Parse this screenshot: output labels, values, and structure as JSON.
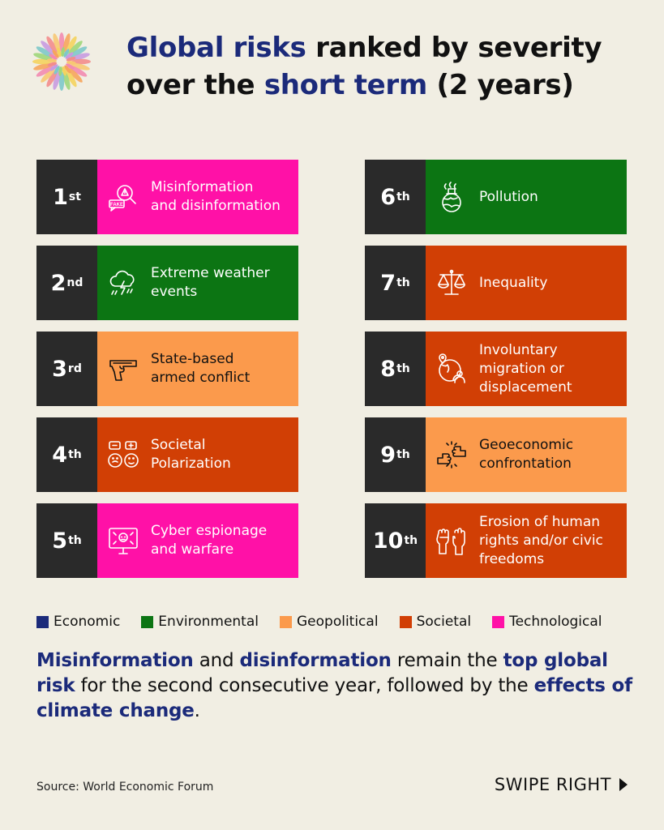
{
  "title": {
    "part1": "Global risks",
    "part2": " ranked by severity",
    "part3": "over the ",
    "part4": "short term",
    "part5": " (2 years)"
  },
  "risks": [
    {
      "rank": "1",
      "suffix": "st",
      "label1": "Misinformation",
      "label2": "and disinformation",
      "label3": "",
      "category": "technological",
      "icon": "fake-news-icon"
    },
    {
      "rank": "2",
      "suffix": "nd",
      "label1": "Extreme weather",
      "label2": "events",
      "label3": "",
      "category": "environmental",
      "icon": "storm-cloud-icon"
    },
    {
      "rank": "3",
      "suffix": "rd",
      "label1": "State-based",
      "label2": "armed conflict",
      "label3": "",
      "category": "geopolitical",
      "icon": "gun-icon"
    },
    {
      "rank": "4",
      "suffix": "th",
      "label1": "Societal",
      "label2": "Polarization",
      "label3": "",
      "category": "societal",
      "icon": "conflict-faces-icon"
    },
    {
      "rank": "5",
      "suffix": "th",
      "label1": "Cyber espionage",
      "label2": "and warfare",
      "label3": "",
      "category": "technological",
      "icon": "cyber-attack-icon"
    },
    {
      "rank": "6",
      "suffix": "th",
      "label1": "Pollution",
      "label2": "",
      "label3": "",
      "category": "environmental",
      "icon": "polluted-globe-icon"
    },
    {
      "rank": "7",
      "suffix": "th",
      "label1": "Inequality",
      "label2": "",
      "label3": "",
      "category": "societal",
      "icon": "scales-icon"
    },
    {
      "rank": "8",
      "suffix": "th",
      "label1": "Involuntary",
      "label2": "migration or",
      "label3": "displacement",
      "category": "societal",
      "icon": "globe-person-icon"
    },
    {
      "rank": "9",
      "suffix": "th",
      "label1": "Geoeconomic",
      "label2": "confrontation",
      "label3": "",
      "category": "geopolitical",
      "icon": "fist-bump-icon"
    },
    {
      "rank": "10",
      "suffix": "th",
      "label1": "Erosion of human",
      "label2": "rights and/or civic",
      "label3": "freedoms",
      "category": "societal",
      "icon": "raised-fists-icon"
    }
  ],
  "legend": [
    {
      "label": "Economic",
      "color": "#1b2a7a"
    },
    {
      "label": "Environmental",
      "color": "#0c7513"
    },
    {
      "label": "Geopolitical",
      "color": "#fb9a4c"
    },
    {
      "label": "Societal",
      "color": "#d13f05"
    },
    {
      "label": "Technological",
      "color": "#ff11a7"
    }
  ],
  "summary": {
    "s1": "Misinformation",
    "s2": " and ",
    "s3": "disinformation",
    "s4": " remain the ",
    "s5": "top global risk",
    "s6": " for the second consecutive year, followed by the ",
    "s7": "effects of climate change",
    "s8": "."
  },
  "source": "Source: World Economic Forum",
  "swipe": "SWIPE RIGHT"
}
